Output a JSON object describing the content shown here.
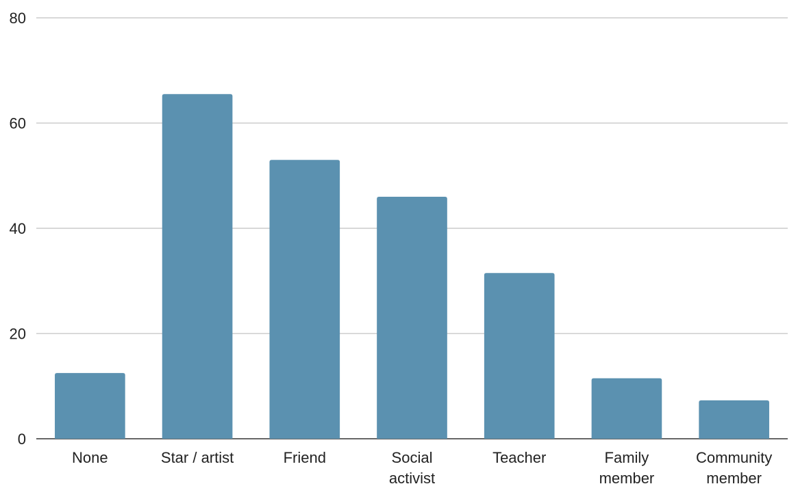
{
  "chart_data": {
    "type": "bar",
    "categories": [
      "None",
      "Star / artist",
      "Friend",
      "Social activist",
      "Teacher",
      "Family member",
      "Community member"
    ],
    "category_lines": [
      [
        "None"
      ],
      [
        "Star / artist"
      ],
      [
        "Friend"
      ],
      [
        "Social",
        "activist"
      ],
      [
        "Teacher"
      ],
      [
        "Family",
        "member"
      ],
      [
        "Community",
        "member"
      ]
    ],
    "values": [
      12.5,
      65.5,
      53,
      46,
      31.5,
      11.5,
      7.3
    ],
    "ylim": [
      0,
      80
    ],
    "yticks": [
      "0",
      "20",
      "40",
      "60",
      "80"
    ],
    "title": "",
    "xlabel": "",
    "ylabel": "",
    "grid": true,
    "bar_color": "#5b91b0"
  }
}
